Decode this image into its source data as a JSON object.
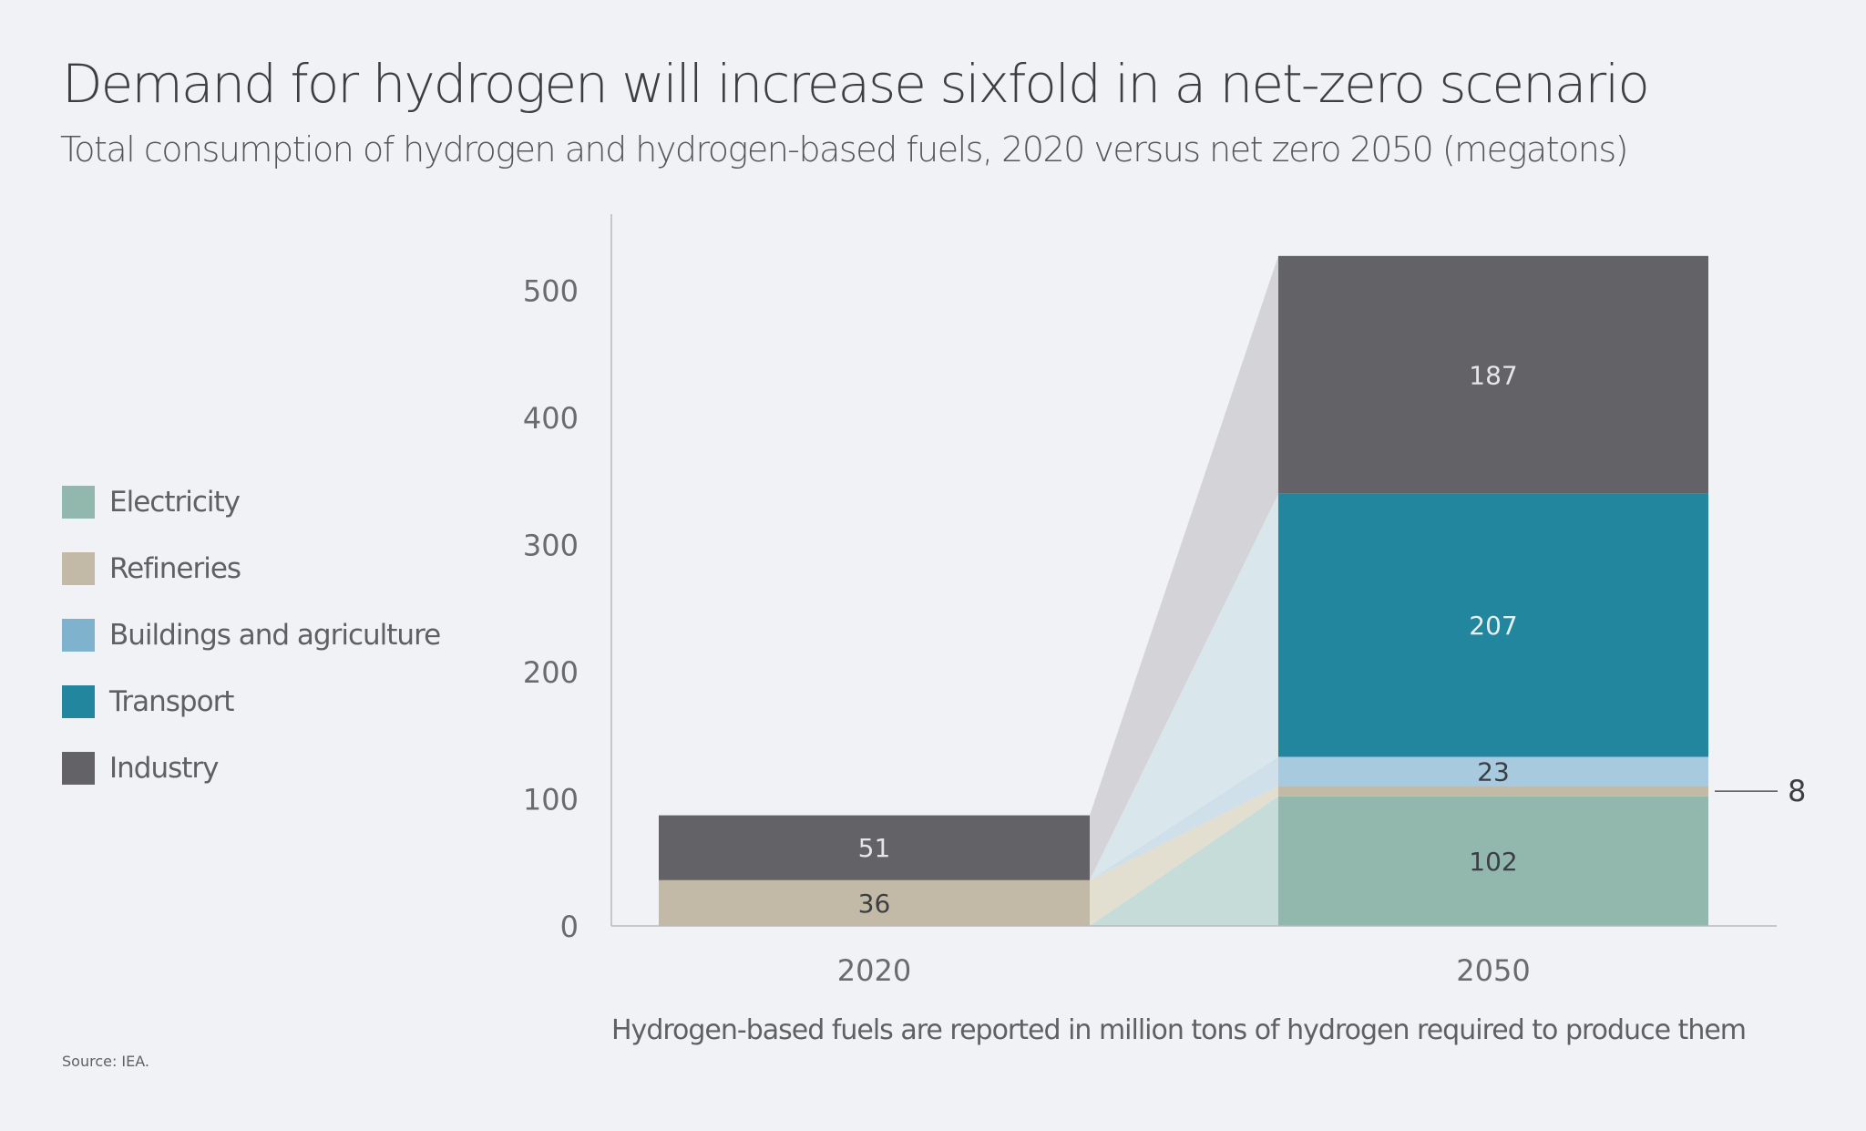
{
  "title": "Demand for hydrogen will increase sixfold in a net-zero scenario",
  "subtitle": "Total consumption of hydrogen and hydrogen-based fuels, 2020 versus net zero 2050 (megatons)",
  "note": "Hydrogen-based fuels are reported in million tons of hydrogen required to produce them",
  "source": "Source: IEA.",
  "chart_data": {
    "type": "bar",
    "stacked": true,
    "categories": [
      "2020",
      "2050"
    ],
    "ylim": [
      0,
      550
    ],
    "yticks": [
      0,
      100,
      200,
      300,
      400,
      500
    ],
    "legend_position": "left",
    "grid": false,
    "series": [
      {
        "name": "Electricity",
        "values": [
          0,
          102
        ],
        "color": "#92b8ae",
        "band_color": "#c6dcd8",
        "labels": [
          "",
          "102"
        ],
        "label_color": "#3d3d44"
      },
      {
        "name": "Refineries",
        "values": [
          36,
          8
        ],
        "color": "#c2baa6",
        "band_color": "#e2dfd1",
        "labels": [
          "36",
          "8"
        ],
        "label_color": "#3d3d44"
      },
      {
        "name": "Buildings and agriculture",
        "values": [
          0,
          23
        ],
        "color": "#a7cade",
        "legend_color": "#7fb2cd",
        "band_color": "#cfe0ea",
        "labels": [
          "",
          "23"
        ],
        "label_color": "#3d3d44"
      },
      {
        "name": "Transport",
        "values": [
          0,
          207
        ],
        "color": "#22869f",
        "band_color": "#d9e6ec",
        "labels": [
          "",
          "207"
        ],
        "label_color": "#e6f0f3"
      },
      {
        "name": "Industry",
        "values": [
          51,
          187
        ],
        "color": "#636267",
        "band_color": "#d3d3d8",
        "labels": [
          "51",
          "187"
        ],
        "label_color": "#e6e6ea"
      }
    ]
  }
}
